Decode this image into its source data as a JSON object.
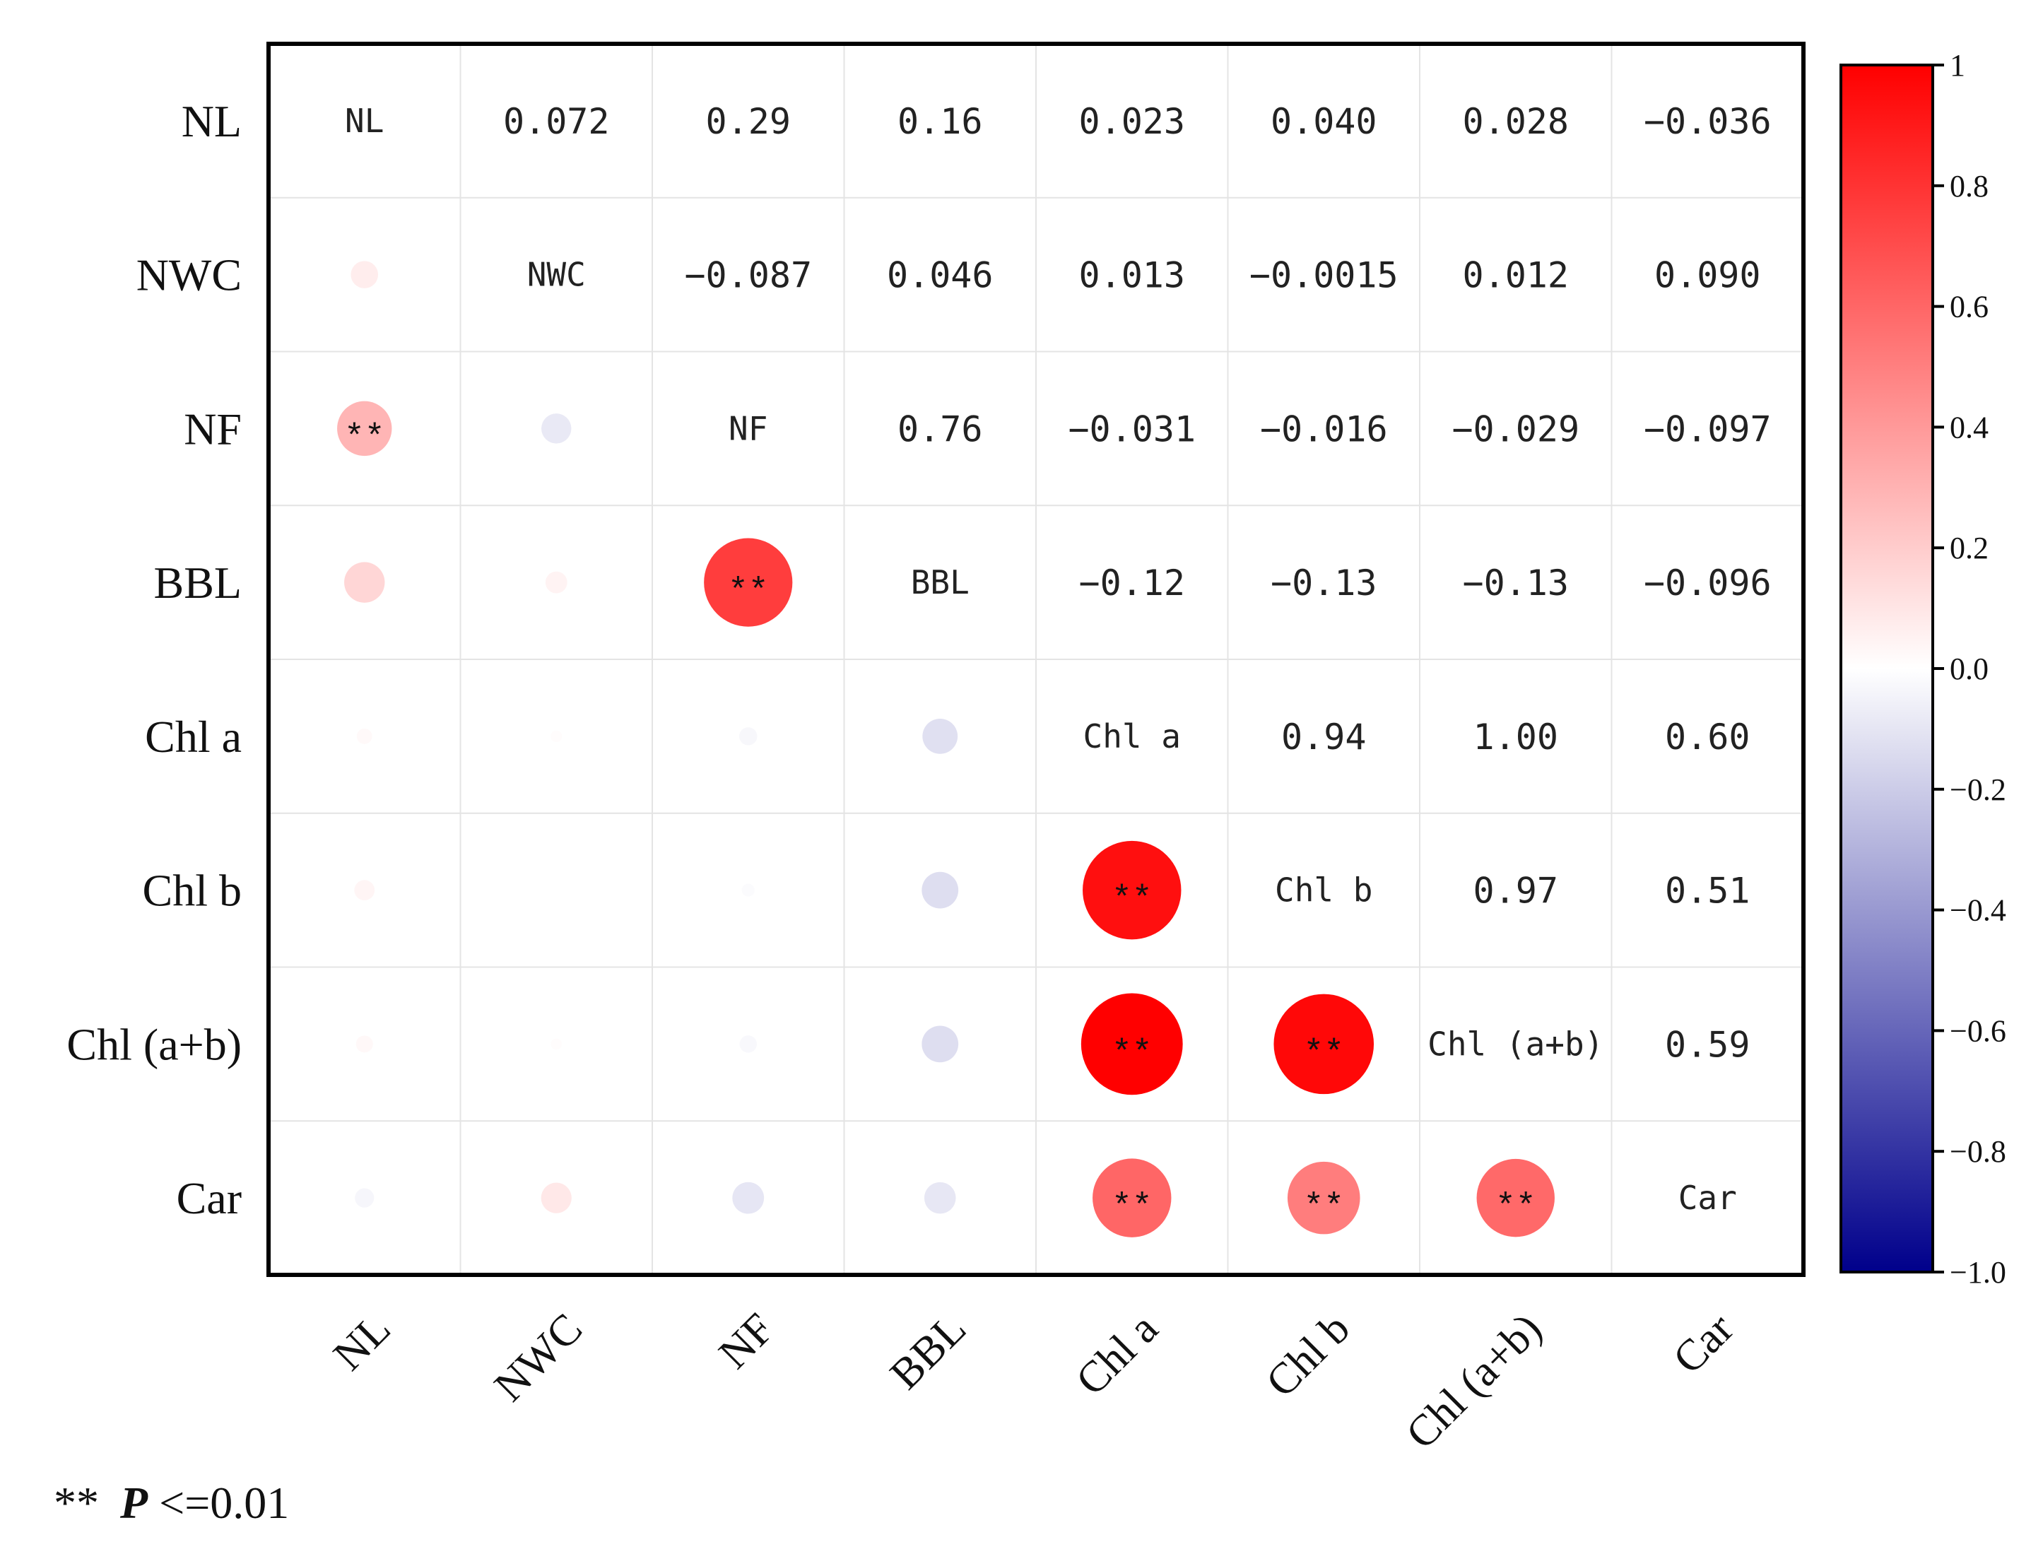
{
  "chart_data": {
    "type": "heatmap",
    "subtype": "correlation-matrix",
    "variables": [
      "NL",
      "NWC",
      "NF",
      "BBL",
      "Chl a",
      "Chl b",
      "Chl (a+b)",
      "Car"
    ],
    "diag_labels": [
      "NL",
      "NWC",
      "NF",
      "BBL",
      "Chl  a",
      "Chl  b",
      "Chl  (a+b)",
      "Car"
    ],
    "matrix": [
      [
        1.0,
        0.072,
        0.29,
        0.16,
        0.023,
        0.04,
        0.028,
        -0.036
      ],
      [
        0.072,
        1.0,
        -0.087,
        0.046,
        0.013,
        -0.0015,
        0.012,
        0.09
      ],
      [
        0.29,
        -0.087,
        1.0,
        0.76,
        -0.031,
        -0.016,
        -0.029,
        -0.097
      ],
      [
        0.16,
        0.046,
        0.76,
        1.0,
        -0.12,
        -0.13,
        -0.13,
        -0.096
      ],
      [
        0.023,
        0.013,
        -0.031,
        -0.12,
        1.0,
        0.94,
        1.0,
        0.6
      ],
      [
        0.04,
        -0.0015,
        -0.016,
        -0.13,
        0.94,
        1.0,
        0.97,
        0.51
      ],
      [
        0.028,
        0.012,
        -0.029,
        -0.13,
        1.0,
        0.97,
        1.0,
        0.59
      ],
      [
        -0.036,
        0.09,
        -0.097,
        -0.096,
        0.6,
        0.51,
        0.59,
        1.0
      ]
    ],
    "upper_text": [
      [
        "",
        "0.072",
        "0.29",
        "0.16",
        "0.023",
        "0.040",
        "0.028",
        "-0.036"
      ],
      [
        "",
        "",
        "-0.087",
        "0.046",
        "0.013",
        "-0.0015",
        "0.012",
        "0.090"
      ],
      [
        "",
        "",
        "",
        "0.76",
        "-0.031",
        "-0.016",
        "-0.029",
        "-0.097"
      ],
      [
        "",
        "",
        "",
        "",
        "-0.12",
        "-0.13",
        "-0.13",
        "-0.096"
      ],
      [
        "",
        "",
        "",
        "",
        "",
        "0.94",
        "1.00",
        "0.60"
      ],
      [
        "",
        "",
        "",
        "",
        "",
        "",
        "0.97",
        "0.51"
      ],
      [
        "",
        "",
        "",
        "",
        "",
        "",
        "",
        "0.59"
      ],
      [
        "",
        "",
        "",
        "",
        "",
        "",
        "",
        ""
      ]
    ],
    "significance": [
      [
        2,
        0,
        "**"
      ],
      [
        3,
        2,
        "**"
      ],
      [
        5,
        4,
        "**"
      ],
      [
        6,
        4,
        "**"
      ],
      [
        6,
        5,
        "**"
      ],
      [
        7,
        4,
        "**"
      ],
      [
        7,
        5,
        "**"
      ],
      [
        7,
        6,
        "**"
      ]
    ],
    "colorbar": {
      "min": -1.0,
      "max": 1.0,
      "ticks": [
        "1",
        "0.8",
        "0.6",
        "0.4",
        "0.2",
        "0.0",
        "−0.2",
        "−0.4",
        "−0.6",
        "−0.8",
        "−1.0"
      ],
      "tick_values": [
        1.0,
        0.8,
        0.6,
        0.4,
        0.2,
        0.0,
        -0.2,
        -0.4,
        -0.6,
        -0.8,
        -1.0
      ],
      "colors": {
        "neg": "#00008B",
        "mid": "#FFFFFF",
        "pos": "#FF0000"
      }
    },
    "footnote": {
      "stars": "**",
      "p": "P",
      "rest": "<=0.01"
    }
  }
}
